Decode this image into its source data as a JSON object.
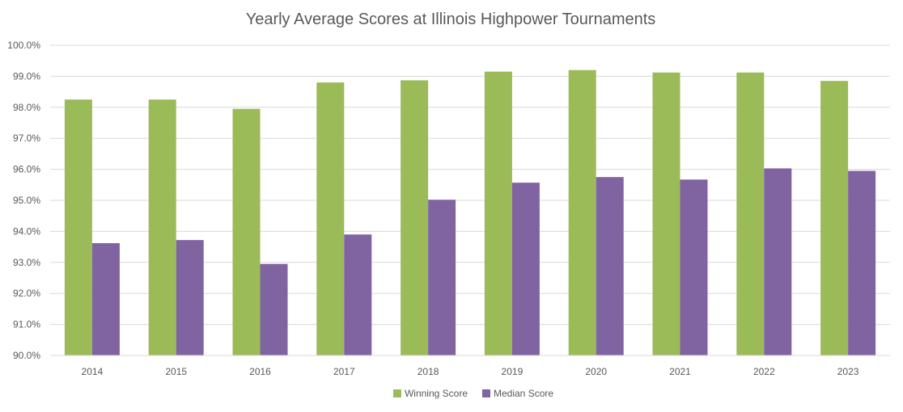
{
  "chart_data": {
    "type": "bar",
    "title": "Yearly Average Scores at Illinois Highpower Tournaments",
    "xlabel": "",
    "ylabel": "",
    "categories": [
      "2014",
      "2015",
      "2016",
      "2017",
      "2018",
      "2019",
      "2020",
      "2021",
      "2022",
      "2023"
    ],
    "series": [
      {
        "name": "Winning Score",
        "color": "#9bbb59",
        "values": [
          98.25,
          98.25,
          97.95,
          98.8,
          98.87,
          99.15,
          99.2,
          99.12,
          99.12,
          98.85
        ]
      },
      {
        "name": "Median Score",
        "color": "#8064a2",
        "values": [
          93.62,
          93.72,
          92.95,
          93.9,
          95.02,
          95.57,
          95.75,
          95.67,
          96.03,
          95.95
        ]
      }
    ],
    "ylim": [
      90,
      100
    ],
    "yticks": [
      "90.0%",
      "91.0%",
      "92.0%",
      "93.0%",
      "94.0%",
      "95.0%",
      "96.0%",
      "97.0%",
      "98.0%",
      "99.0%",
      "100.0%"
    ],
    "grid": true,
    "gridline_color": "#d9d9d9",
    "legend_position": "bottom"
  }
}
